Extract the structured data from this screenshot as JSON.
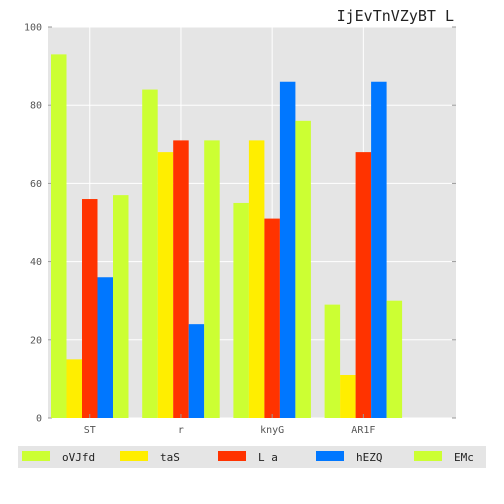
{
  "chart_data": {
    "type": "bar",
    "title": "IjEvTnVZyBT L",
    "xlabel": "",
    "ylabel": "",
    "categories": [
      "ST",
      "r",
      "knyG",
      "AR1F"
    ],
    "ylim": [
      0,
      100
    ],
    "yticks": [
      0,
      20,
      40,
      60,
      80,
      100
    ],
    "grid": true,
    "legend_position": "bottom",
    "series": [
      {
        "name": "oVJfd",
        "color": "#ccff33",
        "values": [
          93,
          84,
          55,
          29
        ]
      },
      {
        "name": "taS",
        "color": "#ffee00",
        "values": [
          15,
          68,
          71,
          11
        ]
      },
      {
        "name": "L a",
        "color": "#ff3300",
        "values": [
          56,
          71,
          51,
          68
        ]
      },
      {
        "name": "hEZQ",
        "color": "#0077ff",
        "values": [
          36,
          24,
          86,
          86
        ]
      },
      {
        "name": "EMc",
        "color": "#ccff33",
        "values": [
          57,
          71,
          76,
          30
        ]
      }
    ]
  }
}
